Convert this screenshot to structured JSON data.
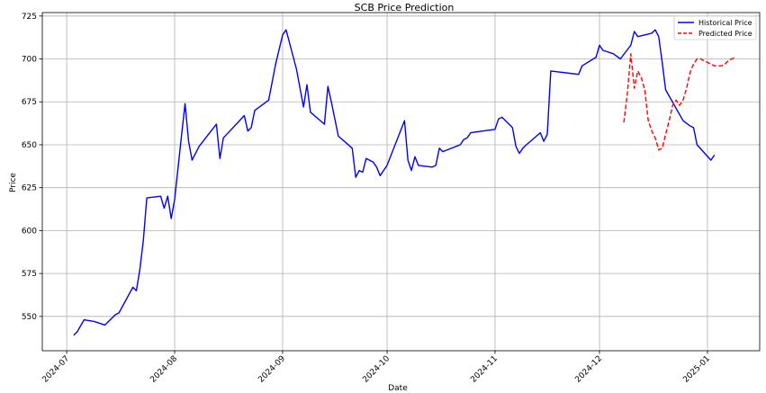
{
  "chart_data": {
    "type": "line",
    "title": "SCB Price Prediction",
    "xlabel": "Date",
    "ylabel": "Price",
    "x_ticks": [
      "2024-07",
      "2024-08",
      "2024-09",
      "2024-10",
      "2024-11",
      "2024-12",
      "2025-01"
    ],
    "y_ticks": [
      550,
      575,
      600,
      625,
      650,
      675,
      700,
      725
    ],
    "xlim": [
      "2024-06-24",
      "2025-01-16"
    ],
    "ylim": [
      530,
      727
    ],
    "grid": true,
    "legend": {
      "position": "top-right",
      "entries": [
        "Historical Price",
        "Predicted Price"
      ]
    },
    "series": [
      {
        "name": "Historical Price",
        "color": "#0000ff",
        "style": "solid",
        "points": [
          [
            "2024-07-03",
            539
          ],
          [
            "2024-07-04",
            541
          ],
          [
            "2024-07-06",
            548
          ],
          [
            "2024-07-09",
            547
          ],
          [
            "2024-07-12",
            545
          ],
          [
            "2024-07-15",
            551
          ],
          [
            "2024-07-16",
            552
          ],
          [
            "2024-07-20",
            567
          ],
          [
            "2024-07-21",
            565
          ],
          [
            "2024-07-22",
            577
          ],
          [
            "2024-07-23",
            594
          ],
          [
            "2024-07-24",
            619
          ],
          [
            "2024-07-28",
            620
          ],
          [
            "2024-07-29",
            613
          ],
          [
            "2024-07-30",
            620
          ],
          [
            "2024-07-31",
            607
          ],
          [
            "2024-08-01",
            618
          ],
          [
            "2024-08-03",
            656
          ],
          [
            "2024-08-04",
            674
          ],
          [
            "2024-08-05",
            652
          ],
          [
            "2024-08-06",
            641
          ],
          [
            "2024-08-08",
            649
          ],
          [
            "2024-08-13",
            662
          ],
          [
            "2024-08-14",
            642
          ],
          [
            "2024-08-15",
            654
          ],
          [
            "2024-08-21",
            667
          ],
          [
            "2024-08-22",
            658
          ],
          [
            "2024-08-23",
            660
          ],
          [
            "2024-08-24",
            670
          ],
          [
            "2024-08-28",
            676
          ],
          [
            "2024-08-30",
            697
          ],
          [
            "2024-09-01",
            714
          ],
          [
            "2024-09-02",
            717
          ],
          [
            "2024-09-05",
            694
          ],
          [
            "2024-09-07",
            672
          ],
          [
            "2024-09-08",
            685
          ],
          [
            "2024-09-09",
            669
          ],
          [
            "2024-09-13",
            662
          ],
          [
            "2024-09-14",
            684
          ],
          [
            "2024-09-15",
            675
          ],
          [
            "2024-09-17",
            655
          ],
          [
            "2024-09-21",
            648
          ],
          [
            "2024-09-22",
            631
          ],
          [
            "2024-09-23",
            635
          ],
          [
            "2024-09-24",
            634
          ],
          [
            "2024-09-25",
            642
          ],
          [
            "2024-09-27",
            640
          ],
          [
            "2024-09-28",
            637
          ],
          [
            "2024-09-29",
            632
          ],
          [
            "2024-10-01",
            638
          ],
          [
            "2024-10-06",
            664
          ],
          [
            "2024-10-07",
            641
          ],
          [
            "2024-10-08",
            635
          ],
          [
            "2024-10-09",
            643
          ],
          [
            "2024-10-10",
            638
          ],
          [
            "2024-10-14",
            637
          ],
          [
            "2024-10-15",
            638
          ],
          [
            "2024-10-16",
            648
          ],
          [
            "2024-10-17",
            646
          ],
          [
            "2024-10-22",
            650
          ],
          [
            "2024-10-23",
            653
          ],
          [
            "2024-10-24",
            654
          ],
          [
            "2024-10-25",
            657
          ],
          [
            "2024-11-01",
            659
          ],
          [
            "2024-11-02",
            665
          ],
          [
            "2024-11-03",
            666
          ],
          [
            "2024-11-06",
            660
          ],
          [
            "2024-11-07",
            649
          ],
          [
            "2024-11-08",
            645
          ],
          [
            "2024-11-09",
            648
          ],
          [
            "2024-11-10",
            650
          ],
          [
            "2024-11-14",
            657
          ],
          [
            "2024-11-15",
            652
          ],
          [
            "2024-11-16",
            656
          ],
          [
            "2024-11-17",
            693
          ],
          [
            "2024-11-25",
            691
          ],
          [
            "2024-11-26",
            696
          ],
          [
            "2024-11-30",
            701
          ],
          [
            "2024-12-01",
            708
          ],
          [
            "2024-12-02",
            705
          ],
          [
            "2024-12-05",
            703
          ],
          [
            "2024-12-07",
            700
          ],
          [
            "2024-12-10",
            708
          ],
          [
            "2024-12-11",
            716
          ],
          [
            "2024-12-12",
            713
          ],
          [
            "2024-12-16",
            715
          ],
          [
            "2024-12-17",
            717
          ],
          [
            "2024-12-18",
            713
          ],
          [
            "2024-12-19",
            698
          ],
          [
            "2024-12-20",
            682
          ],
          [
            "2024-12-25",
            664
          ],
          [
            "2024-12-27",
            661
          ],
          [
            "2024-12-28",
            660
          ],
          [
            "2024-12-29",
            650
          ],
          [
            "2025-01-02",
            641
          ],
          [
            "2025-01-03",
            644
          ]
        ]
      },
      {
        "name": "Predicted Price",
        "color": "#ff0000",
        "style": "dashed",
        "points": [
          [
            "2024-12-08",
            663
          ],
          [
            "2024-12-09",
            680
          ],
          [
            "2024-12-10",
            703
          ],
          [
            "2024-12-11",
            683
          ],
          [
            "2024-12-12",
            693
          ],
          [
            "2024-12-13",
            689
          ],
          [
            "2024-12-14",
            682
          ],
          [
            "2024-12-15",
            664
          ],
          [
            "2024-12-16",
            658
          ],
          [
            "2024-12-17",
            654
          ],
          [
            "2024-12-18",
            647
          ],
          [
            "2024-12-19",
            648
          ],
          [
            "2024-12-20",
            656
          ],
          [
            "2024-12-21",
            664
          ],
          [
            "2024-12-22",
            673
          ],
          [
            "2024-12-23",
            676
          ],
          [
            "2024-12-24",
            673
          ],
          [
            "2024-12-25",
            676
          ],
          [
            "2024-12-26",
            683
          ],
          [
            "2024-12-27",
            692
          ],
          [
            "2024-12-28",
            697
          ],
          [
            "2024-12-29",
            700
          ],
          [
            "2024-12-30",
            700
          ],
          [
            "2024-12-31",
            699
          ],
          [
            "2025-01-01",
            698
          ],
          [
            "2025-01-02",
            697
          ],
          [
            "2025-01-03",
            696
          ],
          [
            "2025-01-04",
            696
          ],
          [
            "2025-01-05",
            696
          ],
          [
            "2025-01-06",
            697
          ],
          [
            "2025-01-07",
            699
          ],
          [
            "2025-01-08",
            700
          ],
          [
            "2025-01-09",
            701
          ]
        ]
      }
    ]
  }
}
